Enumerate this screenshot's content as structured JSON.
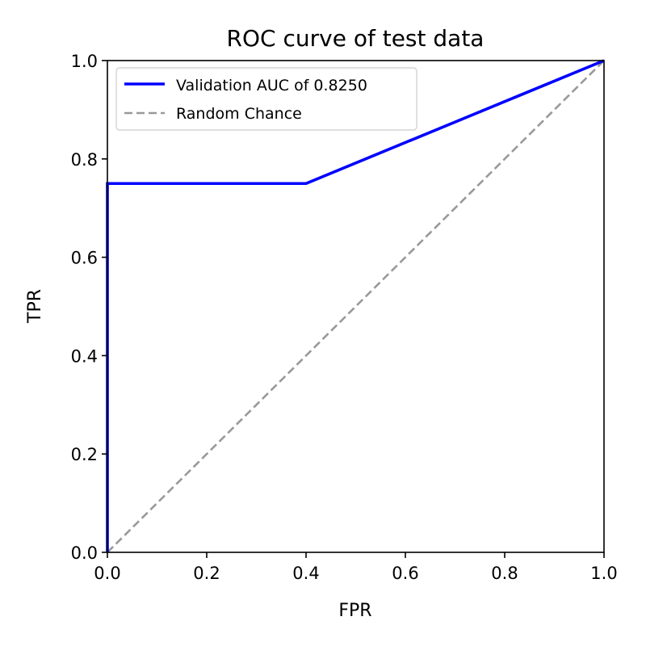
{
  "chart_data": {
    "type": "line",
    "title": "ROC curve of test data",
    "xlabel": "FPR",
    "ylabel": "TPR",
    "xlim": [
      0,
      1
    ],
    "ylim": [
      0,
      1
    ],
    "xticks": [
      "0.0",
      "0.2",
      "0.4",
      "0.6",
      "0.8",
      "1.0"
    ],
    "yticks": [
      "0.0",
      "0.2",
      "0.4",
      "0.6",
      "0.8",
      "1.0"
    ],
    "grid": false,
    "legend_position": "upper-left",
    "series": [
      {
        "name": "Validation AUC of 0.8250",
        "color": "#0000ff",
        "style": "solid",
        "x": [
          0.0,
          0.0,
          0.4,
          1.0
        ],
        "y": [
          0.0,
          0.75,
          0.75,
          1.0
        ]
      },
      {
        "name": "Random Chance",
        "color": "#999999",
        "style": "dashed",
        "x": [
          0.0,
          1.0
        ],
        "y": [
          0.0,
          1.0
        ]
      }
    ]
  }
}
